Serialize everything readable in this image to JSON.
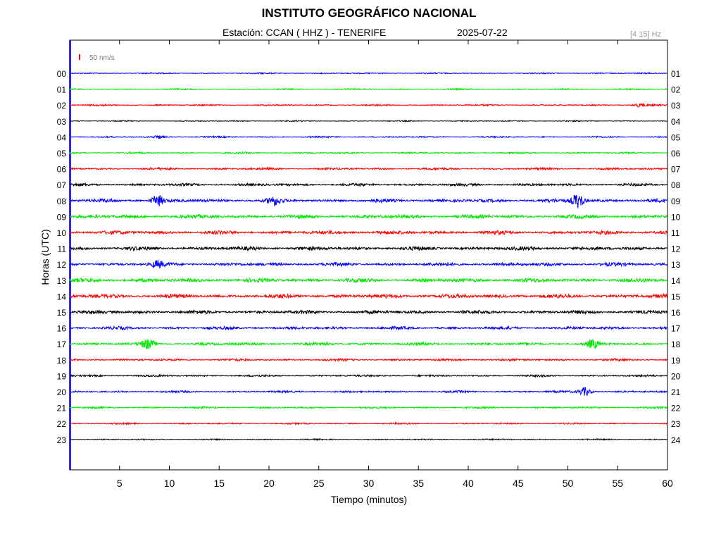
{
  "header": {
    "title": "INSTITUTO GEOGRÁFICO NACIONAL",
    "station": "Estación:  CCAN ( HHZ ) - TENERIFE",
    "date": "2025-07-22",
    "band": "[4 15] Hz"
  },
  "chart_data": {
    "type": "line",
    "xlabel": "Tiempo (minutos)",
    "ylabel": "Horas (UTC)",
    "xlim": [
      0,
      60
    ],
    "x_ticks": [
      5,
      10,
      15,
      20,
      25,
      30,
      35,
      40,
      45,
      50,
      55,
      60
    ],
    "scale_label": "50 nm/s",
    "left_labels": [
      "00",
      "01",
      "02",
      "03",
      "04",
      "05",
      "06",
      "07",
      "08",
      "09",
      "10",
      "11",
      "12",
      "13",
      "14",
      "15",
      "16",
      "17",
      "18",
      "19",
      "20",
      "21",
      "22",
      "23"
    ],
    "right_labels": [
      "01",
      "02",
      "03",
      "04",
      "05",
      "06",
      "07",
      "08",
      "09",
      "10",
      "11",
      "12",
      "13",
      "14",
      "15",
      "16",
      "17",
      "18",
      "19",
      "20",
      "21",
      "22",
      "23",
      "24"
    ],
    "trace_colors": [
      "#0000ff",
      "#00e600",
      "#ff0000",
      "#000000"
    ],
    "noise_level": [
      1.0,
      1.1,
      1.2,
      0.9,
      1.2,
      1.3,
      1.8,
      2.2,
      2.8,
      3.0,
      3.0,
      3.0,
      2.8,
      3.2,
      3.2,
      2.9,
      2.4,
      2.4,
      1.8,
      1.6,
      1.6,
      1.5,
      1.3,
      1.0
    ],
    "events": [
      {
        "hour": 2,
        "minute": 57.2,
        "amplitude": 2.5
      },
      {
        "hour": 4,
        "minute": 9.0,
        "amplitude": 2.0
      },
      {
        "hour": 8,
        "minute": 8.8,
        "amplitude": 7
      },
      {
        "hour": 8,
        "minute": 20.5,
        "amplitude": 5
      },
      {
        "hour": 8,
        "minute": 51.0,
        "amplitude": 10
      },
      {
        "hour": 12,
        "minute": 8.8,
        "amplitude": 4
      },
      {
        "hour": 17,
        "minute": 7.8,
        "amplitude": 6
      },
      {
        "hour": 17,
        "minute": 52.5,
        "amplitude": 5
      },
      {
        "hour": 20,
        "minute": 51.7,
        "amplitude": 6
      }
    ]
  }
}
